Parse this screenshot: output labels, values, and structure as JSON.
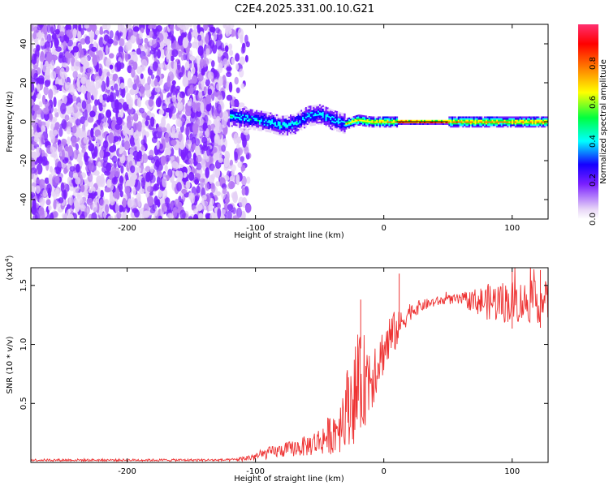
{
  "title": "C2E4.2025.331.00.10.G21",
  "chart_data": [
    {
      "type": "heatmap",
      "xlabel": "Height of straight line (km)",
      "ylabel": "Frequency (Hz)",
      "xlim": [
        -275,
        128
      ],
      "ylim": [
        -50,
        50
      ],
      "xticks": [
        -200,
        -100,
        0,
        100
      ],
      "yticks": [
        -40,
        -20,
        0,
        20,
        40
      ],
      "grid": false,
      "colorbar": {
        "label": "Normalized spectral amplitude",
        "range": [
          0,
          1
        ],
        "ticks": [
          0.0,
          0.2,
          0.4,
          0.6,
          0.8
        ],
        "colors": [
          "#e8d6f7",
          "#7a1fff",
          "#1500ff",
          "#00ffff",
          "#00ff40",
          "#ffff00",
          "#ff7a00",
          "#ff0000",
          "#ff3070"
        ]
      },
      "regions": [
        {
          "x_range": [
            -275,
            -120
          ],
          "freq_range": [
            -50,
            50
          ],
          "amplitude": "noise 0.0-0.3"
        },
        {
          "x_range": [
            -120,
            -105
          ],
          "freq_range": [
            -50,
            50
          ],
          "amplitude": "sparse noise"
        },
        {
          "x_range": [
            -120,
            -30
          ],
          "freq_range": [
            -8,
            8
          ],
          "amplitude": "0.3-0.6"
        },
        {
          "x_range": [
            -30,
            10
          ],
          "freq_range": [
            -3,
            3
          ],
          "amplitude": "0.5-0.9"
        },
        {
          "x_range": [
            10,
            50
          ],
          "freq_range": [
            -1,
            1
          ],
          "amplitude": "0.9-1.0"
        },
        {
          "x_range": [
            50,
            128
          ],
          "freq_range": [
            -3,
            3
          ],
          "amplitude": "0.6-0.9"
        }
      ],
      "tone_track": {
        "x": [
          -120,
          -100,
          -90,
          -80,
          -70,
          -60,
          -50,
          -40,
          -30,
          -20,
          -10,
          0,
          10,
          30,
          50,
          80,
          110,
          128
        ],
        "freq": [
          3,
          1,
          0,
          -2,
          -1,
          3,
          4,
          1,
          -1,
          1,
          0,
          0,
          0,
          0,
          0,
          0,
          0,
          0
        ]
      }
    },
    {
      "type": "line",
      "xlabel": "Height of straight line (km)",
      "ylabel": "SNR (10 * v/v)",
      "y_multiplier": "(x10",
      "y_multiplier_exp": "4",
      "y_multiplier_close": ")",
      "xlim": [
        -275,
        128
      ],
      "ylim": [
        0,
        1.65
      ],
      "xticks": [
        -200,
        -100,
        0,
        100
      ],
      "yticks": [
        0.5,
        1.0,
        1.5
      ],
      "ytick_labels": [
        "0.5",
        "1.0",
        "1.5"
      ],
      "color": "#ee3333",
      "grid": false,
      "envelope": {
        "x": [
          -275,
          -120,
          -110,
          -100,
          -90,
          -80,
          -70,
          -60,
          -50,
          -40,
          -35,
          -30,
          -25,
          -20,
          -15,
          -10,
          -5,
          0,
          5,
          10,
          15,
          20,
          30,
          40,
          50,
          60,
          70,
          80,
          90,
          100,
          110,
          120,
          128
        ],
        "mean": [
          0.02,
          0.02,
          0.03,
          0.05,
          0.08,
          0.1,
          0.12,
          0.14,
          0.18,
          0.25,
          0.32,
          0.45,
          0.55,
          0.6,
          0.7,
          0.75,
          0.85,
          0.95,
          1.05,
          1.12,
          1.2,
          1.28,
          1.33,
          1.36,
          1.38,
          1.38,
          1.37,
          1.36,
          1.36,
          1.36,
          1.36,
          1.36,
          1.36
        ],
        "spread": [
          0.01,
          0.01,
          0.02,
          0.04,
          0.05,
          0.06,
          0.07,
          0.09,
          0.12,
          0.18,
          0.25,
          0.3,
          0.4,
          0.45,
          0.4,
          0.35,
          0.25,
          0.2,
          0.25,
          0.15,
          0.1,
          0.08,
          0.05,
          0.04,
          0.04,
          0.05,
          0.1,
          0.15,
          0.18,
          0.18,
          0.18,
          0.18,
          0.18
        ]
      },
      "peaks": [
        {
          "x": -18,
          "y": 1.38
        },
        {
          "x": 12,
          "y": 1.6
        },
        {
          "x": 100,
          "y": 1.62
        },
        {
          "x": 122,
          "y": 1.63
        }
      ]
    }
  ]
}
